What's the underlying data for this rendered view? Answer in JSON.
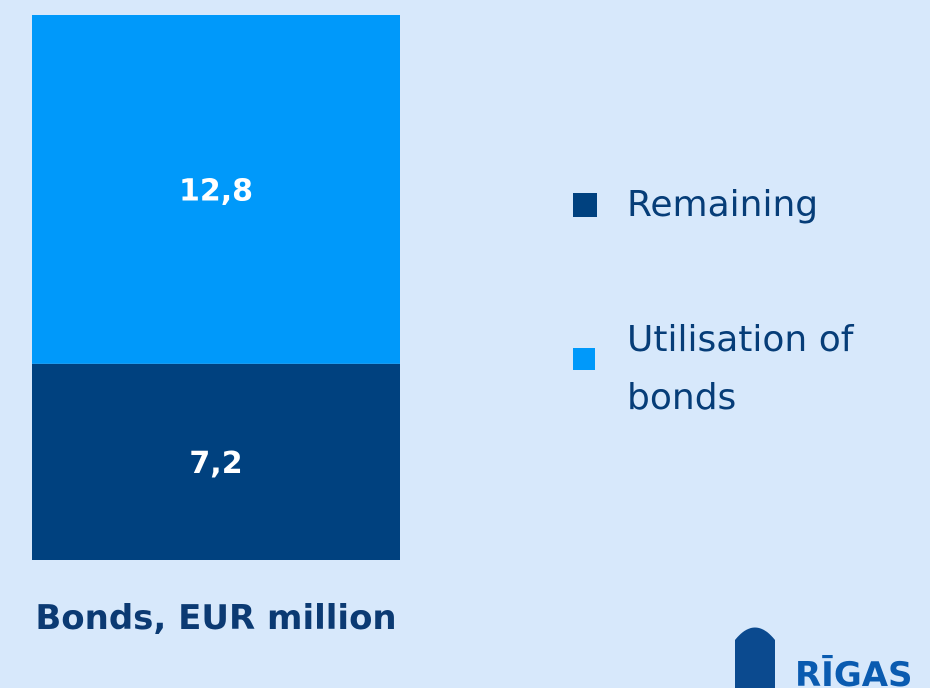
{
  "chart_data": {
    "type": "stacked_bar",
    "categories": [
      "Bonds, EUR million"
    ],
    "series": [
      {
        "name": "Remaining",
        "color": "#00417f",
        "values": [
          7.2
        ],
        "value_labels": [
          "7,2"
        ]
      },
      {
        "name": "Utilisation of bonds",
        "color": "#0099fa",
        "values": [
          12.8
        ],
        "value_labels": [
          "12,8"
        ]
      }
    ],
    "ylim": [
      0,
      20
    ]
  },
  "logo_text": "RĪGAS"
}
